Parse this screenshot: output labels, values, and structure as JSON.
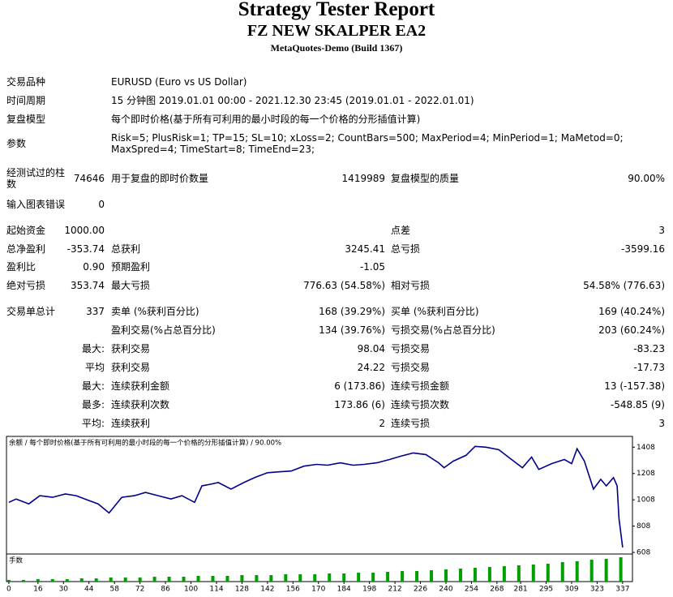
{
  "header": {
    "title": "Strategy Tester Report",
    "subtitle": "FZ NEW SKALPER EA2",
    "build": "MetaQuotes-Demo (Build 1367)"
  },
  "report": {
    "rows": [
      {
        "label": "交易品种",
        "text": "EURUSD (Euro vs US Dollar)"
      },
      {
        "label": "时间周期",
        "text": "15 分钟图 2019.01.01 00:00 - 2021.12.30 23:45 (2019.01.01 - 2022.01.01)"
      },
      {
        "label": "复盘模型",
        "text": "每个即时价格(基于所有可利用的最小时段的每一个价格的分形插值计算)"
      },
      {
        "label": "参数",
        "text": "Risk=5; PlusRisk=1; TP=15; SL=10; xLoss=2; CountBars=500; MaxPeriod=4; MinPeriod=1; MaMetod=0; MaxSpred=4; TimeStart=8; TimeEnd=23;"
      },
      {
        "label": "经测试过的柱数",
        "value": "74646",
        "label2": "用于复盘的即时价数量",
        "value2": "1419989",
        "label3": "复盘模型的质量",
        "value3": "90.00%"
      },
      {
        "label": "输入图表错误",
        "value": "0"
      },
      {
        "label": "起始资金",
        "value": "1000.00",
        "label3": "点差",
        "value3": "3"
      },
      {
        "label": "总净盈利",
        "value": "-353.74",
        "label2": "总获利",
        "value2": "3245.41",
        "label3": "总亏损",
        "value3": "-3599.16"
      },
      {
        "label": "盈利比",
        "value": "0.90",
        "label2": "预期盈利",
        "value2": "-1.05"
      },
      {
        "label": "绝对亏损",
        "value": "353.74",
        "label2": "最大亏损",
        "value2": "776.63 (54.58%)",
        "label3": "相对亏损",
        "value3": "54.58% (776.63)"
      },
      {
        "label": "交易单总计",
        "value": "337",
        "label2": "卖单 (%获利百分比)",
        "value2": "168 (39.29%)",
        "label3": "买单 (%获利百分比)",
        "value3": "169 (40.24%)"
      },
      {
        "label2": "盈利交易(%占总百分比)",
        "value2": "134 (39.76%)",
        "label3": "亏损交易(%占总百分比)",
        "value3": "203 (60.24%)"
      },
      {
        "sublabel": "最大:",
        "label2": "获利交易",
        "value2": "98.04",
        "label3": "亏损交易",
        "value3": "-83.23"
      },
      {
        "sublabel": "平均",
        "label2": "获利交易",
        "value2": "24.22",
        "label3": "亏损交易",
        "value3": "-17.73"
      },
      {
        "sublabel": "最大:",
        "label2": "连续获利金额",
        "value2": "6 (173.86)",
        "label3": "连续亏损金额",
        "value3": "13 (-157.38)"
      },
      {
        "sublabel": "最多:",
        "label2": "连续获利次数",
        "value2": "173.86 (6)",
        "label3": "连续亏损次数",
        "value3": "-548.85 (9)"
      },
      {
        "sublabel": "平均:",
        "label2": "连续获利",
        "value2": "2",
        "label3": "连续亏损",
        "value3": "3"
      }
    ]
  },
  "chart_data": {
    "type": "line",
    "caption": "余额 / 每个即时价格(基于所有可利用的最小时段的每一个价格的分形插值计算) / 90.00%",
    "color": "#00008b",
    "x": [
      0,
      4,
      11,
      17,
      24,
      31,
      37,
      44,
      49,
      55,
      62,
      69,
      75,
      82,
      89,
      95,
      102,
      106,
      111,
      115,
      122,
      129,
      135,
      142,
      149,
      155,
      162,
      169,
      175,
      182,
      189,
      195,
      202,
      209,
      215,
      222,
      229,
      236,
      239,
      244,
      251,
      256,
      262,
      269,
      276,
      282,
      287,
      291,
      298,
      305,
      309,
      312,
      316,
      321,
      325,
      328,
      332,
      334,
      335,
      337
    ],
    "values": [
      989,
      1014,
      977,
      1039,
      1027,
      1052,
      1039,
      1002,
      977,
      908,
      1027,
      1039,
      1064,
      1039,
      1014,
      1039,
      989,
      1114,
      1127,
      1139,
      1089,
      1139,
      1177,
      1214,
      1221,
      1227,
      1264,
      1277,
      1271,
      1289,
      1271,
      1277,
      1289,
      1314,
      1339,
      1364,
      1352,
      1289,
      1252,
      1302,
      1346,
      1414,
      1408,
      1389,
      1314,
      1252,
      1333,
      1239,
      1283,
      1314,
      1283,
      1396,
      1302,
      1089,
      1164,
      1114,
      1177,
      1114,
      864,
      646
    ],
    "xlim": [
      -1.3,
      342.4
    ],
    "ylim": [
      596,
      1490
    ],
    "yticks": [
      608,
      808,
      1008,
      1208,
      1408
    ],
    "xticks": [
      0,
      16,
      30,
      44,
      58,
      72,
      86,
      100,
      114,
      128,
      142,
      156,
      170,
      184,
      198,
      212,
      226,
      240,
      254,
      268,
      281,
      295,
      309,
      323,
      337
    ],
    "lots": {
      "caption": "手数",
      "color": "#00a000",
      "ylim": [
        0,
        0.32
      ],
      "x": [
        0,
        8,
        16,
        24,
        32,
        40,
        48,
        56,
        64,
        72,
        80,
        88,
        96,
        104,
        112,
        120,
        128,
        136,
        144,
        152,
        160,
        168,
        176,
        184,
        192,
        200,
        208,
        216,
        224,
        232,
        240,
        248,
        256,
        264,
        272,
        280,
        288,
        296,
        304,
        312,
        320,
        328,
        336
      ],
      "values": [
        0.02,
        0.02,
        0.03,
        0.03,
        0.03,
        0.04,
        0.04,
        0.05,
        0.05,
        0.05,
        0.06,
        0.06,
        0.06,
        0.07,
        0.07,
        0.07,
        0.08,
        0.08,
        0.08,
        0.09,
        0.09,
        0.09,
        0.1,
        0.1,
        0.11,
        0.11,
        0.12,
        0.13,
        0.13,
        0.14,
        0.15,
        0.16,
        0.17,
        0.18,
        0.19,
        0.2,
        0.21,
        0.22,
        0.24,
        0.25,
        0.27,
        0.28,
        0.3
      ]
    }
  }
}
